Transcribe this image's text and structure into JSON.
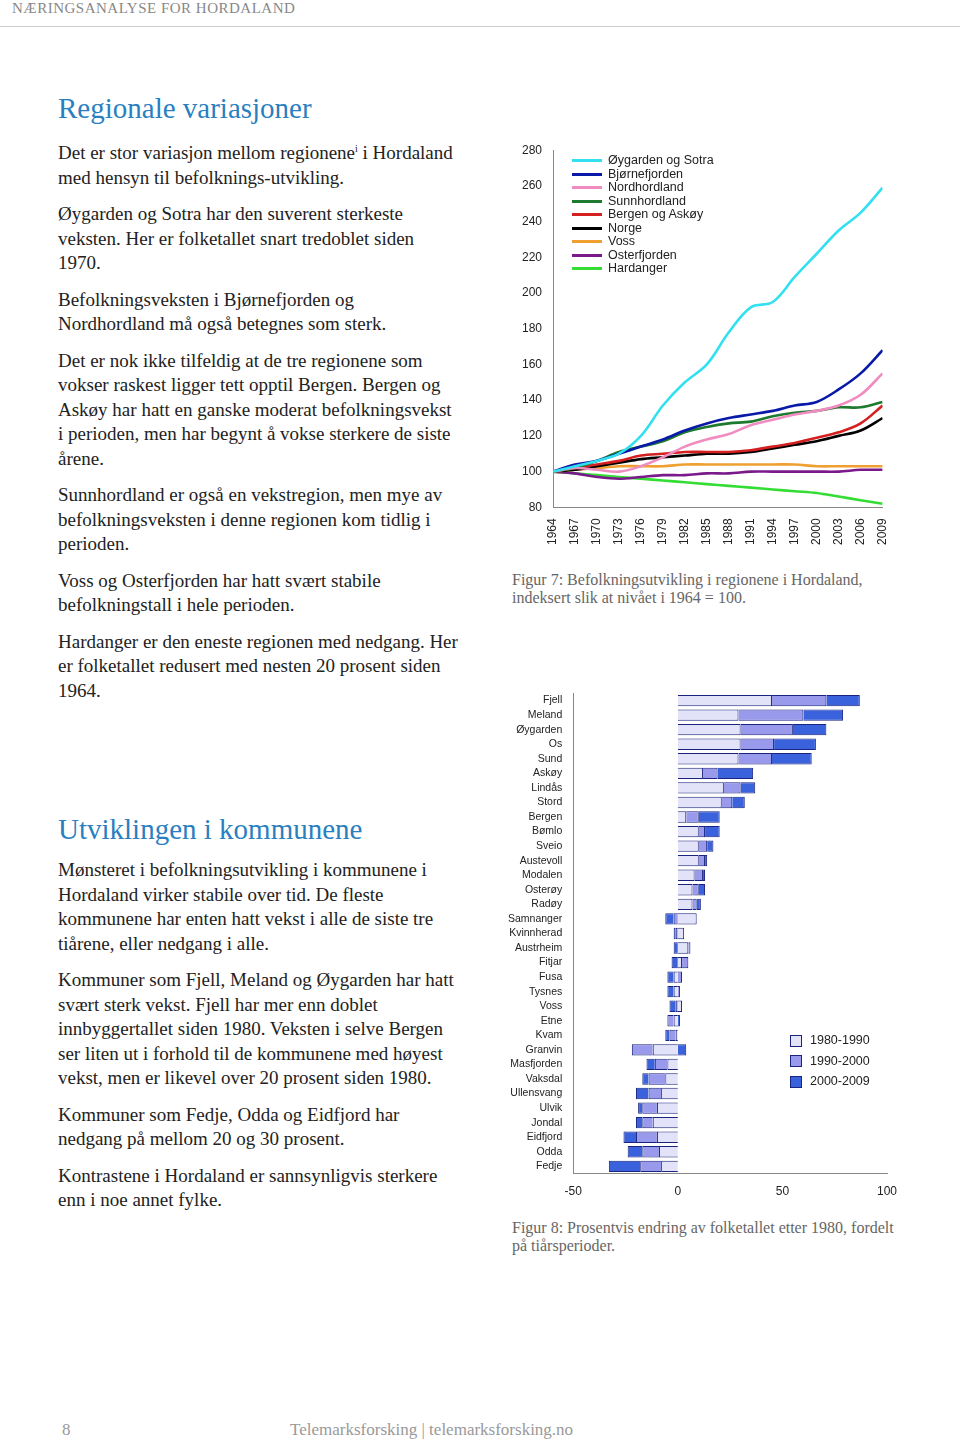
{
  "header": "NÆRINGSANALYSE FOR HORDALAND",
  "sections": [
    {
      "heading": "Regionale variasjoner",
      "paragraphs": [
        [
          {
            "text": "Det er stor variasjon mellom regionene"
          },
          {
            "sup": "i"
          },
          {
            "text": " i Hordaland med hensyn til befolknings-utvikling."
          }
        ],
        [
          {
            "text": "Øygarden og Sotra har den suverent sterkeste veksten. Her er folketallet snart tredoblet siden 1970."
          }
        ],
        [
          {
            "text": "Befolkningsveksten i Bjørnefjorden og Nordhordland må også betegnes som sterk."
          }
        ],
        [
          {
            "text": "Det er nok ikke tilfeldig at de tre regionene som vokser raskest ligger tett opptil Bergen. Bergen og Askøy har hatt en ganske moderat befolkningsvekst i perioden, men har begynt å vokse sterkere de siste årene."
          }
        ],
        [
          {
            "text": "Sunnhordland er også en vekstregion, men mye av befolkningsveksten i denne regionen kom tidlig i perioden."
          }
        ],
        [
          {
            "text": "Voss og Osterfjorden har hatt svært stabile befolkningstall i hele perioden."
          }
        ],
        [
          {
            "text": "Hardanger er den eneste regionen med nedgang. Her er folketallet redusert med nesten 20 prosent siden 1964."
          }
        ]
      ]
    },
    {
      "heading": "Utviklingen i kommunene",
      "paragraphs": [
        [
          {
            "text": "Mønsteret i befolkningsutvikling i kommunene i Hordaland virker stabile over tid. De fleste kommunene har enten hatt vekst i alle de siste tre tiårene, eller nedgang i alle."
          }
        ],
        [
          {
            "text": "Kommuner som Fjell, Meland og Øygarden har hatt svært sterk vekst. Fjell har mer enn doblet innbyggertallet siden 1980. Veksten i selve Bergen ser liten ut i forhold til de kommunene med høyest vekst, men er likevel over 20 prosent siden 1980."
          }
        ],
        [
          {
            "text": "Kommuner som Fedje, Odda og Eidfjord har nedgang på mellom 20 og 30 prosent."
          }
        ],
        [
          {
            "text": "Kontrastene i Hordaland er sannsynligvis sterkere enn i noe annet fylke."
          }
        ]
      ]
    }
  ],
  "chart_data": [
    {
      "type": "line",
      "x": [
        1964,
        1967,
        1970,
        1973,
        1976,
        1979,
        1982,
        1985,
        1988,
        1991,
        1994,
        1997,
        2000,
        2003,
        2006,
        2009
      ],
      "xlim": [
        1964,
        2009
      ],
      "xticks": [
        1964,
        1967,
        1970,
        1973,
        1976,
        1979,
        1982,
        1985,
        1988,
        1991,
        1994,
        1997,
        2000,
        2003,
        2006,
        2009
      ],
      "ylim": [
        80,
        280
      ],
      "yticks": [
        80,
        100,
        120,
        140,
        160,
        180,
        200,
        220,
        240,
        260,
        280
      ],
      "grid": false,
      "legend": "upper left",
      "series": [
        {
          "name": "Øygarden og Sotra",
          "color": "#33e0f0",
          "values": [
            100,
            103,
            106,
            110,
            120,
            137,
            150,
            160,
            178,
            192,
            195,
            209,
            222,
            235,
            245,
            259
          ]
        },
        {
          "name": "Bjørnefjorden",
          "color": "#0a1aa8",
          "values": [
            100,
            104,
            106,
            110,
            114,
            118,
            123,
            127,
            130,
            132,
            134,
            137,
            139,
            146,
            155,
            168
          ]
        },
        {
          "name": "Nordhordland",
          "color": "#f08cc0",
          "values": [
            100,
            102,
            101,
            100,
            103,
            108,
            114,
            118,
            121,
            126,
            129,
            132,
            134,
            137,
            143,
            155
          ]
        },
        {
          "name": "Sunnhordland",
          "color": "#1e7a2e",
          "values": [
            100,
            102,
            106,
            111,
            114,
            117,
            122,
            125,
            127,
            128,
            131,
            133,
            134,
            136,
            136,
            139
          ]
        },
        {
          "name": "Bergen og Askøy",
          "color": "#d42020",
          "values": [
            100,
            102,
            104,
            106,
            109,
            110,
            111,
            111,
            111,
            112,
            114,
            116,
            119,
            122,
            127,
            137
          ]
        },
        {
          "name": "Norge",
          "color": "#000000",
          "values": [
            100,
            101,
            103,
            105,
            107,
            108,
            109,
            110,
            110,
            111,
            113,
            115,
            117,
            120,
            123,
            130
          ]
        },
        {
          "name": "Voss",
          "color": "#f0a030",
          "values": [
            100,
            101,
            102,
            103,
            103,
            103,
            104,
            104,
            104,
            104,
            104,
            104,
            103,
            103,
            103,
            103
          ]
        },
        {
          "name": "Osterfjorden",
          "color": "#7a1a8a",
          "values": [
            100,
            99,
            97,
            96,
            97,
            98,
            98,
            99,
            99,
            100,
            100,
            100,
            100,
            100,
            101,
            101
          ]
        },
        {
          "name": "Hardanger",
          "color": "#33dd33",
          "values": [
            100,
            99,
            98,
            97,
            96,
            95,
            94,
            93,
            92,
            91,
            90,
            89,
            88,
            86,
            84,
            82
          ]
        }
      ]
    },
    {
      "type": "bar",
      "orientation": "horizontal",
      "stacked": true,
      "categories": [
        "Fjell",
        "Meland",
        "Øygarden",
        "Os",
        "Sund",
        "Askøy",
        "Lindås",
        "Stord",
        "Bergen",
        "Bømlo",
        "Sveio",
        "Austevoll",
        "Modalen",
        "Osterøy",
        "Radøy",
        "Samnanger",
        "Kvinnherad",
        "Austrheim",
        "Fitjar",
        "Fusa",
        "Tysnes",
        "Voss",
        "Etne",
        "Kvam",
        "Granvin",
        "Masfjorden",
        "Vaksdal",
        "Ullensvang",
        "Ulvik",
        "Jondal",
        "Eidfjord",
        "Odda",
        "Fedje"
      ],
      "xlim": [
        -50,
        100
      ],
      "xticks": [
        -50,
        0,
        50,
        100
      ],
      "grid": false,
      "legend": "lower right",
      "series": [
        {
          "name": "1980-1990",
          "color": "#e2e2f8",
          "values": [
            45,
            29,
            30,
            30,
            29,
            12,
            22,
            21,
            4,
            10,
            10,
            10,
            8,
            7,
            7,
            9,
            3,
            5,
            2,
            -2,
            -2,
            2,
            -2,
            -1,
            -12,
            -5,
            -6,
            -8,
            -10,
            -12,
            -10,
            -9,
            -8
          ]
        },
        {
          "name": "1990-2000",
          "color": "#9a9aec",
          "values": [
            26,
            31,
            25,
            16,
            16,
            7,
            8,
            5,
            6,
            3,
            4,
            3,
            4,
            3,
            2,
            -2,
            -1,
            1,
            3,
            2,
            1,
            -1,
            -3,
            -3,
            -10,
            -6,
            -8,
            -6,
            -7,
            -5,
            -10,
            -8,
            -10
          ]
        },
        {
          "name": "2000-2009",
          "color": "#3a62dc",
          "values": [
            16,
            19,
            16,
            20,
            19,
            17,
            7,
            6,
            10,
            7,
            3,
            1,
            1,
            3,
            2,
            -4,
            -1,
            -2,
            -3,
            -3,
            -3,
            -3,
            1,
            -2,
            4,
            -4,
            -3,
            -6,
            -2,
            -3,
            -6,
            -7,
            -15
          ]
        }
      ]
    }
  ],
  "captions": [
    "Figur 7: Befolkningsutvikling i regionene i Hordaland, indeksert slik at nivået i 1964 = 100.",
    "Figur 8: Prosentvis endring av folketallet etter 1980, fordelt på tiårsperioder."
  ],
  "footer": {
    "page": "8",
    "text": "Telemarksforsking | telemarksforsking.no"
  }
}
